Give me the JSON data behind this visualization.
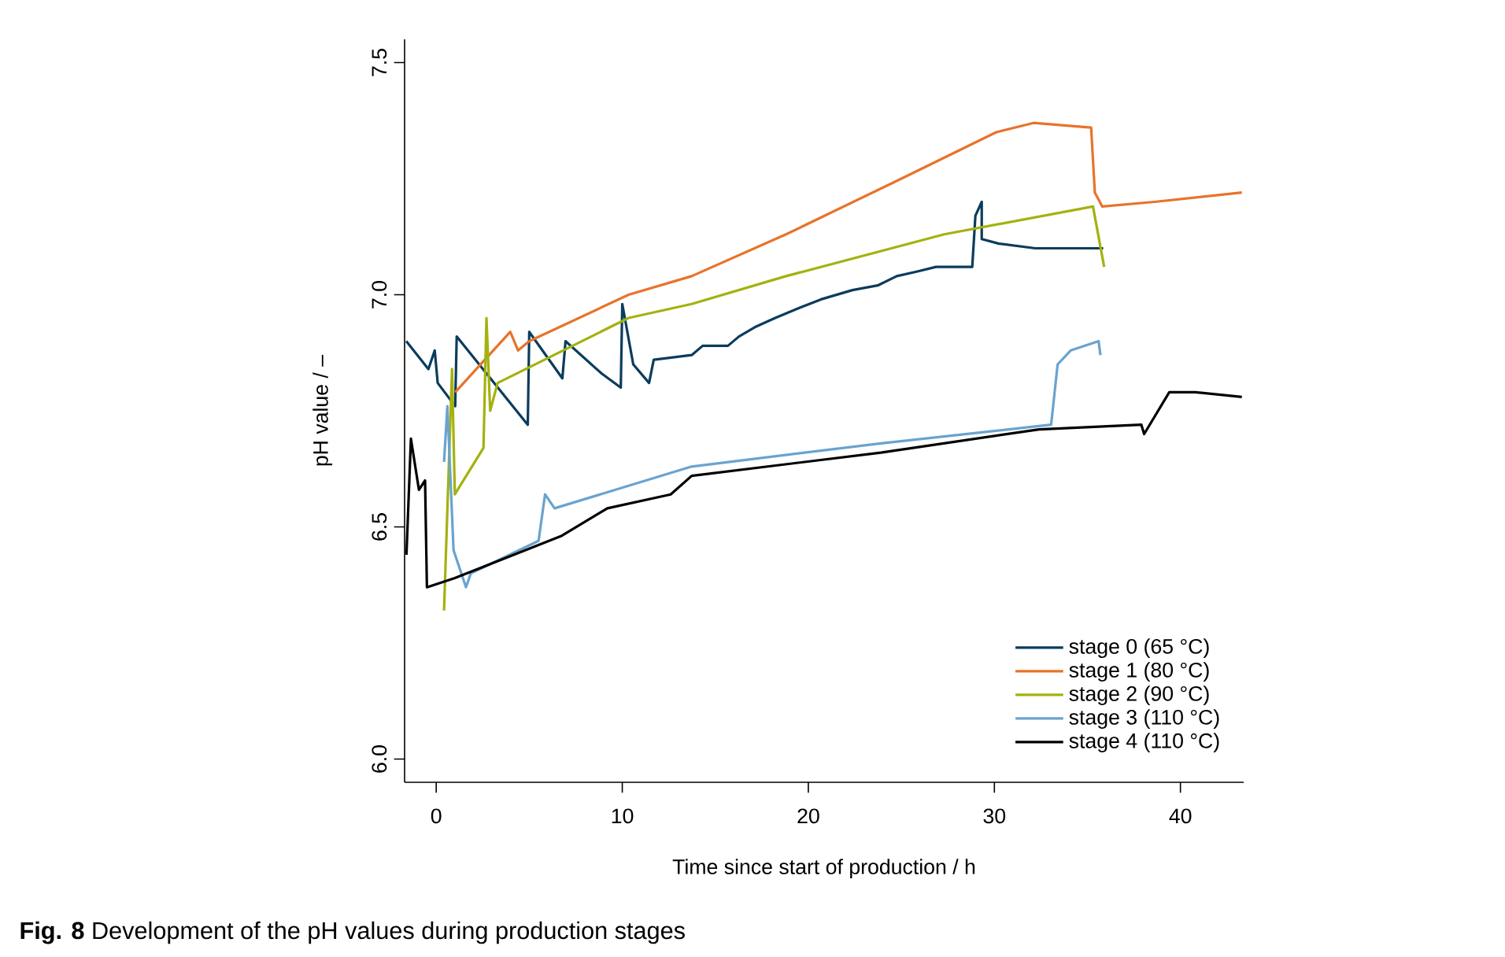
{
  "chart_data": {
    "type": "line",
    "xlabel": "Time since start of production / h",
    "ylabel": "pH value / –",
    "annotations": [
      "**Fig. 8**  Development of the pH values during production stages"
    ],
    "xlim": [
      -1.7,
      43.4
    ],
    "ylim": [
      5.95,
      7.55
    ],
    "xticks": [
      0,
      10,
      20,
      30,
      40
    ],
    "yticks": [
      {
        "value": 6,
        "label": "6.0"
      },
      6.5,
      {
        "value": 7,
        "label": "7.0"
      },
      7.5
    ],
    "grid": false,
    "legend": "bottom right",
    "marker": "none",
    "line_style": "solid",
    "series": [
      {
        "name": "stage 0 (65 °C)",
        "color": "#0b3c5d",
        "x": [
          -1.61,
          -0.42,
          -0.08,
          0.08,
          1.02,
          1.1,
          4.92,
          5.0,
          6.78,
          6.95,
          8.9,
          9.92,
          10.0,
          10.59,
          11.44,
          11.69,
          13.73,
          14.32,
          15.68,
          16.27,
          17.12,
          18.22,
          19.41,
          20.68,
          22.37,
          23.73,
          24.75,
          25.85,
          26.86,
          28.81,
          28.98,
          29.32,
          29.32,
          30.25,
          32.2,
          35.85
        ],
        "values": [
          6.9,
          6.84,
          6.88,
          6.81,
          6.76,
          6.91,
          6.72,
          6.92,
          6.82,
          6.9,
          6.83,
          6.8,
          6.98,
          6.85,
          6.81,
          6.86,
          6.87,
          6.89,
          6.89,
          6.91,
          6.93,
          6.95,
          6.97,
          6.99,
          7.01,
          7.02,
          7.04,
          7.05,
          7.06,
          7.06,
          7.17,
          7.2,
          7.12,
          7.11,
          7.1,
          7.1
        ]
      },
      {
        "name": "stage 1 (80 °C)",
        "color": "#e8732a",
        "x": [
          1.02,
          3.98,
          4.4,
          5.0,
          10.34,
          13.73,
          18.8,
          25.0,
          30.1,
          32.1,
          35.2,
          35.4,
          35.8,
          38.6,
          43.3
        ],
        "values": [
          6.79,
          6.92,
          6.88,
          6.9,
          7.0,
          7.04,
          7.13,
          7.25,
          7.35,
          7.37,
          7.36,
          7.22,
          7.19,
          7.2,
          7.22
        ]
      },
      {
        "name": "stage 2 (90 °C)",
        "color": "#a3b20f",
        "x": [
          0.42,
          0.85,
          1.0,
          2.54,
          2.7,
          2.9,
          3.3,
          10.34,
          13.73,
          18.8,
          27.3,
          35.3,
          35.9
        ],
        "values": [
          6.32,
          6.84,
          6.57,
          6.67,
          6.95,
          6.75,
          6.81,
          6.95,
          6.98,
          7.04,
          7.13,
          7.19,
          7.06
        ]
      },
      {
        "name": "stage 3 (110 °C)",
        "color": "#6aa3cf",
        "x": [
          0.42,
          0.6,
          0.93,
          1.6,
          1.86,
          5.5,
          5.85,
          6.36,
          13.73,
          23.9,
          33.05,
          33.4,
          34.1,
          35.6,
          35.7
        ],
        "values": [
          6.64,
          6.76,
          6.45,
          6.37,
          6.4,
          6.47,
          6.57,
          6.54,
          6.63,
          6.68,
          6.72,
          6.85,
          6.88,
          6.9,
          6.87
        ]
      },
      {
        "name": "stage 4 (110 °C)",
        "color": "#000000",
        "x": [
          -1.6,
          -1.36,
          -0.93,
          -0.6,
          -0.5,
          1.0,
          6.7,
          9.2,
          12.6,
          13.73,
          23.9,
          32.4,
          37.9,
          38.05,
          39.4,
          40.8,
          43.3
        ],
        "values": [
          6.44,
          6.69,
          6.58,
          6.6,
          6.37,
          6.39,
          6.48,
          6.54,
          6.57,
          6.61,
          6.66,
          6.71,
          6.72,
          6.7,
          6.79,
          6.79,
          6.78
        ]
      }
    ]
  }
}
